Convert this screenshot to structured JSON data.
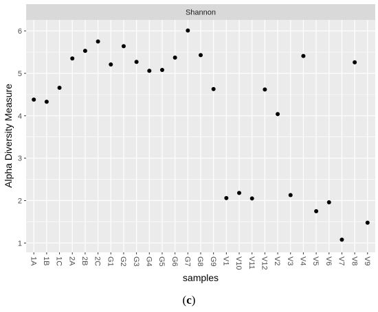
{
  "chart_data": {
    "type": "scatter",
    "facet_label": "Shannon",
    "xlabel": "samples",
    "ylabel": "Alpha Diversity Measure",
    "categories": [
      "1A",
      "1B",
      "1C",
      "2A",
      "2B",
      "2C",
      "G1",
      "G2",
      "G3",
      "G4",
      "G5",
      "G6",
      "G7",
      "G8",
      "G9",
      "V1",
      "V10",
      "V11",
      "V12",
      "V2",
      "V3",
      "V4",
      "V5",
      "V6",
      "V7",
      "V8",
      "V9"
    ],
    "values": [
      4.38,
      4.33,
      4.66,
      5.35,
      5.53,
      5.75,
      5.21,
      5.64,
      5.27,
      5.06,
      5.08,
      5.37,
      6.01,
      5.43,
      4.63,
      2.06,
      2.18,
      2.05,
      4.62,
      4.04,
      2.13,
      5.41,
      1.75,
      1.96,
      1.08,
      5.26,
      1.48
    ],
    "yticks": [
      1,
      2,
      3,
      4,
      5,
      6
    ],
    "ylim": [
      0.78,
      6.26
    ],
    "grid": true,
    "point_color": "#000000",
    "panel_bg": "#ebebeb",
    "strip_bg": "#d9d9d9"
  },
  "caption": {
    "open": "(",
    "letter": "c",
    "close": ")"
  }
}
